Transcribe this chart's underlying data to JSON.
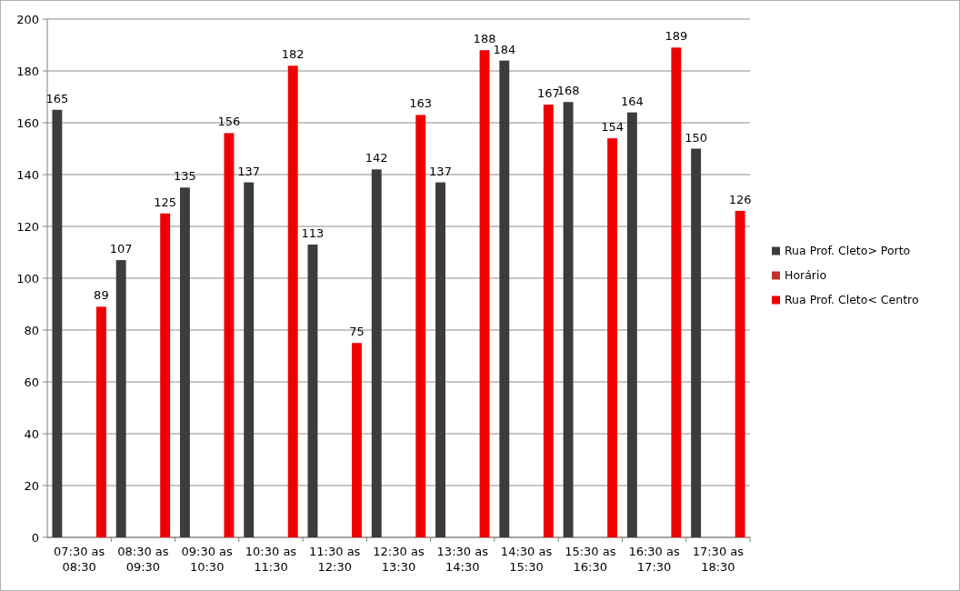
{
  "chart_data": {
    "type": "bar",
    "categories": [
      "07:30 as 08:30",
      "08:30 as 09:30",
      "09:30 as 10:30",
      "10:30 as 11:30",
      "11:30 as 12:30",
      "12:30 as 13:30",
      "13:30 as 14:30",
      "14:30 as 15:30",
      "15:30 as 16:30",
      "16:30 as 17:30",
      "17:30 as 18:30"
    ],
    "series": [
      {
        "name": "Rua Prof. Cleto> Porto",
        "color": "#3c3c3c",
        "values": [
          165,
          107,
          135,
          137,
          113,
          142,
          137,
          184,
          168,
          164,
          150
        ]
      },
      {
        "name": "Horário",
        "color": "#c0302c",
        "values": [
          null,
          null,
          null,
          null,
          null,
          null,
          null,
          null,
          null,
          null,
          null
        ]
      },
      {
        "name": "Rua Prof. Cleto< Centro",
        "color": "#f00000",
        "values": [
          89,
          125,
          156,
          182,
          75,
          163,
          188,
          167,
          154,
          189,
          126
        ]
      }
    ],
    "ylim": [
      0,
      200
    ],
    "yticks": [
      0,
      20,
      40,
      60,
      80,
      100,
      120,
      140,
      160,
      180,
      200
    ],
    "grid": "y",
    "legend": "right",
    "data_labels": true
  }
}
